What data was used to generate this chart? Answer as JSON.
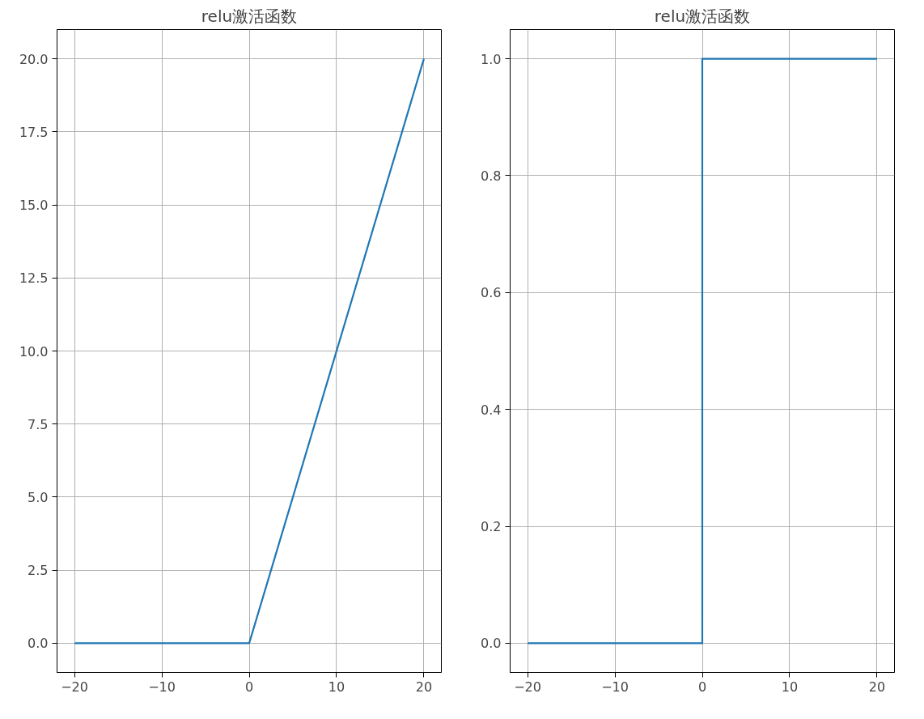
{
  "chart_data": [
    {
      "type": "line",
      "title": "relu激活函数",
      "x": [
        -20,
        0,
        20
      ],
      "series": [
        {
          "color": "#1f77b4",
          "values": [
            0,
            0,
            20
          ]
        }
      ],
      "xlim": [
        -22,
        22
      ],
      "ylim": [
        -1,
        21
      ],
      "xticks": [
        -20,
        -10,
        0,
        10,
        20
      ],
      "yticks": [
        {
          "value": 0,
          "label": "0.0"
        },
        {
          "value": 2.5,
          "label": "2.5"
        },
        {
          "value": 5,
          "label": "5.0"
        },
        {
          "value": 7.5,
          "label": "7.5"
        },
        {
          "value": 10,
          "label": "10.0"
        },
        {
          "value": 12.5,
          "label": "12.5"
        },
        {
          "value": 15,
          "label": "15.0"
        },
        {
          "value": 17.5,
          "label": "17.5"
        },
        {
          "value": 20,
          "label": "20.0"
        }
      ],
      "grid": true
    },
    {
      "type": "line",
      "title": "relu激活函数",
      "x": [
        -20,
        0,
        0,
        20
      ],
      "series": [
        {
          "color": "#1f77b4",
          "values": [
            0,
            0,
            1,
            1
          ]
        }
      ],
      "xlim": [
        -22,
        22
      ],
      "ylim": [
        -0.05,
        1.05
      ],
      "xticks": [
        -20,
        -10,
        0,
        10,
        20
      ],
      "yticks": [
        {
          "value": 0,
          "label": "0.0"
        },
        {
          "value": 0.2,
          "label": "0.2"
        },
        {
          "value": 0.4,
          "label": "0.4"
        },
        {
          "value": 0.6,
          "label": "0.6"
        },
        {
          "value": 0.8,
          "label": "0.8"
        },
        {
          "value": 1,
          "label": "1.0"
        }
      ],
      "grid": true
    }
  ]
}
